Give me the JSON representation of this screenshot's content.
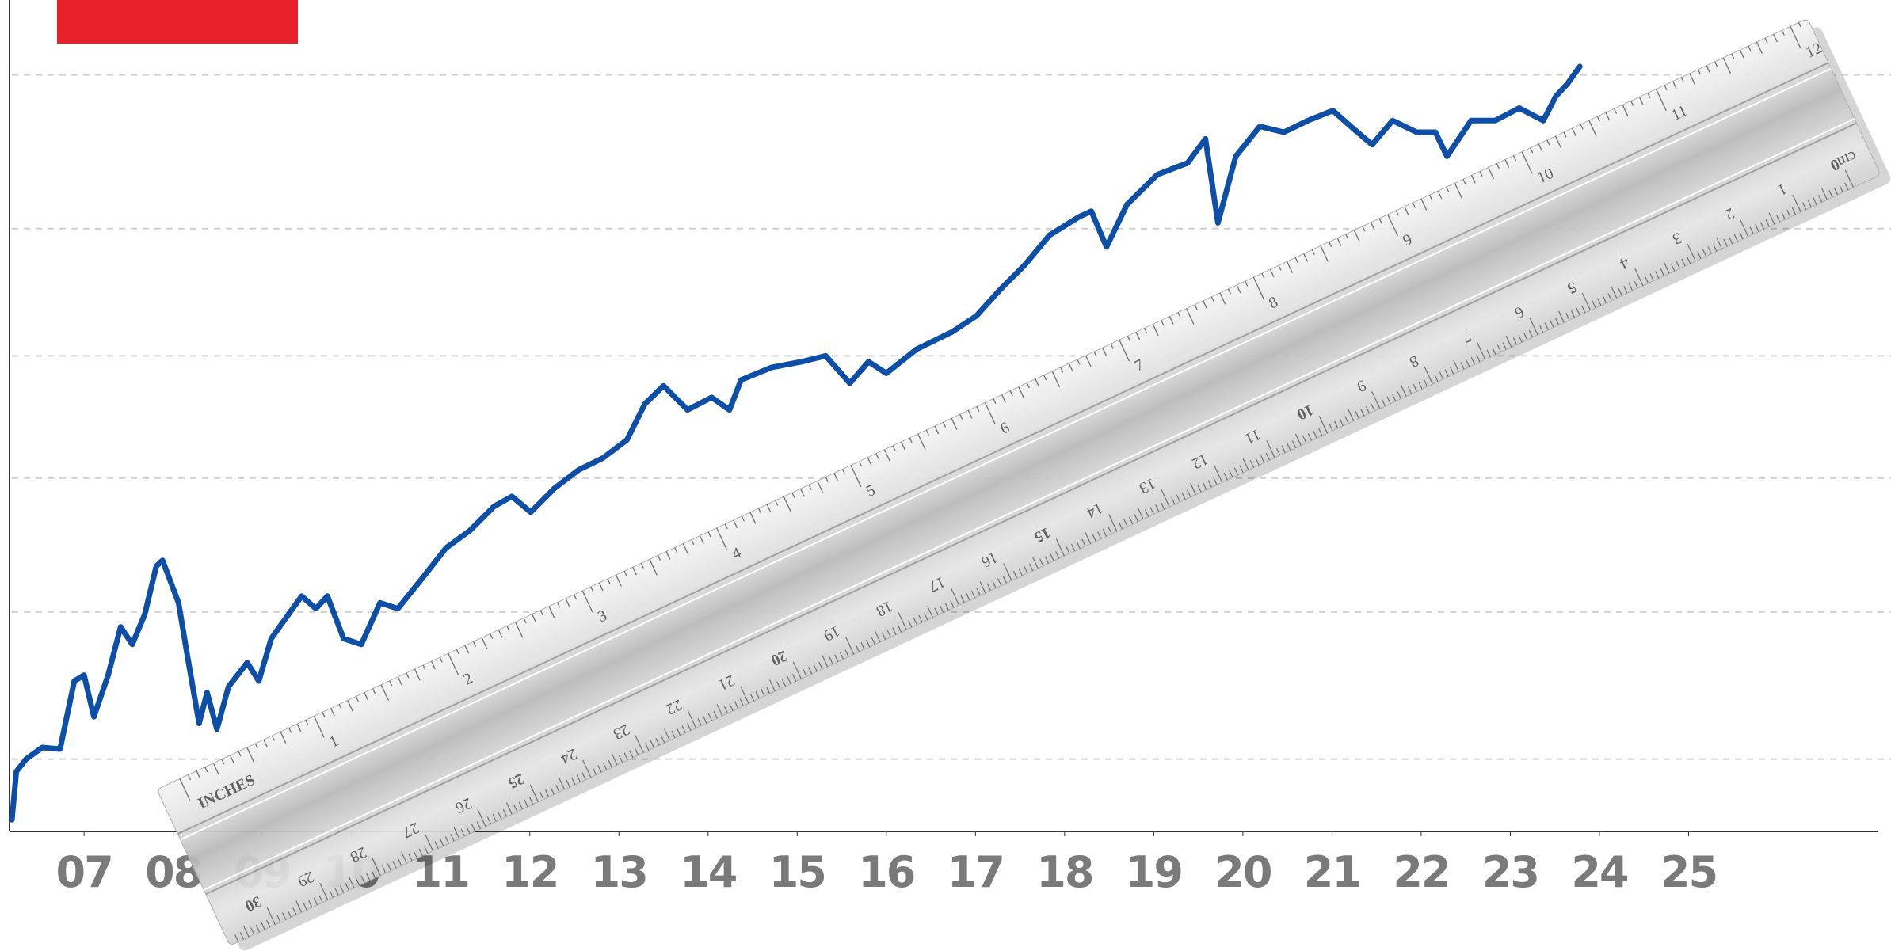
{
  "chart_data": {
    "type": "line",
    "color": "#0d4ea6",
    "grid": true,
    "x": [
      6.19,
      6.24,
      6.35,
      6.53,
      6.73,
      6.89,
      7.0,
      7.11,
      7.27,
      7.41,
      7.54,
      7.68,
      7.81,
      7.88,
      8.06,
      8.15,
      8.29,
      8.38,
      8.49,
      8.62,
      8.83,
      8.96,
      9.1,
      9.44,
      9.6,
      9.73,
      9.91,
      10.11,
      10.32,
      10.52,
      10.79,
      11.06,
      11.33,
      11.6,
      11.8,
      12.01,
      12.28,
      12.55,
      12.82,
      13.09,
      13.29,
      13.5,
      13.77,
      14.04,
      14.24,
      14.37,
      14.71,
      15.05,
      15.32,
      15.59,
      15.8,
      16.0,
      16.34,
      16.74,
      17.01,
      17.28,
      17.55,
      17.83,
      18.16,
      18.3,
      18.47,
      18.7,
      19.04,
      19.38,
      19.58,
      19.72,
      19.92,
      20.19,
      20.46,
      20.73,
      21.01,
      21.21,
      21.45,
      21.68,
      21.95,
      22.16,
      22.29,
      22.56,
      22.83,
      23.1,
      23.37,
      23.51,
      23.64,
      23.78
    ],
    "values": [
      1.4,
      7.2,
      8.7,
      10.1,
      9.9,
      18.1,
      18.8,
      13.8,
      18.8,
      24.6,
      22.5,
      26.1,
      31.9,
      32.6,
      27.5,
      21.7,
      13.0,
      16.7,
      12.3,
      17.4,
      20.3,
      18.1,
      23.2,
      28.3,
      26.8,
      28.3,
      23.2,
      22.5,
      27.5,
      26.8,
      30.4,
      34.1,
      36.2,
      39.1,
      40.3,
      38.4,
      41.3,
      43.5,
      44.9,
      47.1,
      51.4,
      53.6,
      50.7,
      52.2,
      50.7,
      54.3,
      55.8,
      56.5,
      57.2,
      53.9,
      56.5,
      55.1,
      58.0,
      60.1,
      62.0,
      65.2,
      68.1,
      71.7,
      73.9,
      74.6,
      70.3,
      75.4,
      79.0,
      80.4,
      83.3,
      73.2,
      81.2,
      84.8,
      84.1,
      85.5,
      86.7,
      84.8,
      82.6,
      85.5,
      84.1,
      84.1,
      81.2,
      85.5,
      85.5,
      87.0,
      85.5,
      88.4,
      89.9,
      92.0
    ],
    "xlim": [
      6.19,
      27.12
    ],
    "xticks": [
      {
        "value": 7,
        "label": "07"
      },
      {
        "value": 8,
        "label": "08"
      },
      {
        "value": 9,
        "label": "09"
      },
      10,
      11,
      12,
      13,
      14,
      15,
      16,
      17,
      18,
      19,
      20,
      21,
      22,
      23,
      24,
      25
    ],
    "ylim": [
      0,
      100
    ],
    "yticks": [
      8.7,
      26.4,
      42.5,
      57.2,
      72.5,
      91.0
    ]
  },
  "ruler": {
    "inch_unit": "INCHES",
    "inches": [
      1,
      2,
      3,
      4,
      5,
      6,
      7,
      8,
      9,
      10,
      11,
      12
    ],
    "cm_unit": "cm",
    "cm": [
      0,
      1,
      2,
      3,
      4,
      5,
      6,
      7,
      8,
      9,
      10,
      11,
      12,
      13,
      14,
      15,
      16,
      17,
      18,
      19,
      20,
      21,
      22,
      23,
      24,
      25,
      26,
      27,
      28,
      29,
      30
    ]
  }
}
